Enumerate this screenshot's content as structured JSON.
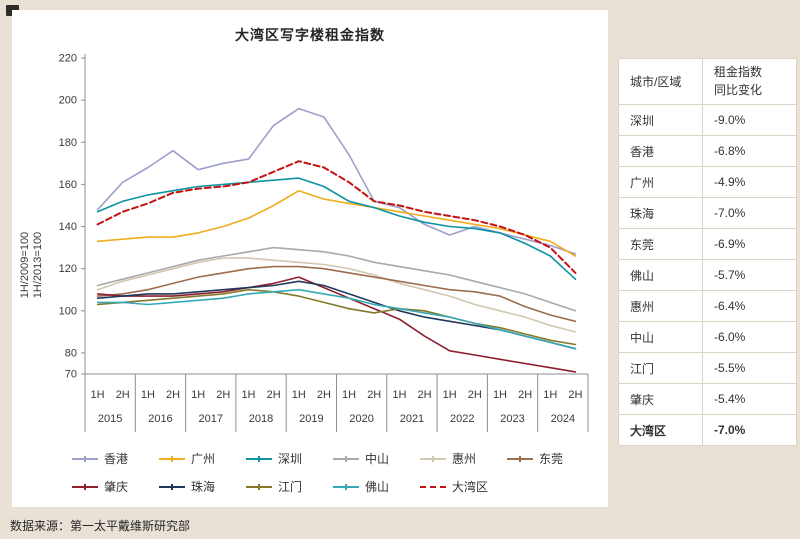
{
  "colors": {
    "page_background": "#e9e1d5",
    "panel_background": "#ffffff"
  },
  "chart_data": {
    "type": "line",
    "title": "大湾区写字楼租金指数",
    "ylabel_lines": [
      "1H/2009=100",
      "1H/2013=100"
    ],
    "ylim": [
      70,
      220
    ],
    "y_ticks": [
      70,
      80,
      100,
      120,
      140,
      160,
      180,
      200,
      220
    ],
    "half_labels": [
      "1H",
      "2H"
    ],
    "years": [
      "2015",
      "2016",
      "2017",
      "2018",
      "2019",
      "2020",
      "2021",
      "2022",
      "2023",
      "2024"
    ],
    "grid": false,
    "legend_position": "bottom",
    "series": [
      {
        "id": "hongkong",
        "name": "香港",
        "color": "#9ca0cb",
        "dashed": false,
        "values": [
          148,
          161,
          168,
          176,
          167,
          170,
          172,
          188,
          196,
          192,
          174,
          152,
          149,
          141,
          136,
          140,
          137,
          134,
          131,
          127
        ]
      },
      {
        "id": "guangzhou",
        "name": "广州",
        "color": "#f0ad1e",
        "dashed": false,
        "values": [
          133,
          134,
          135,
          135,
          137,
          140,
          144,
          150,
          157,
          153,
          151,
          149,
          147,
          145,
          143,
          141,
          139,
          136,
          133,
          126
        ]
      },
      {
        "id": "shenzhen",
        "name": "深圳",
        "color": "#0d93a3",
        "dashed": false,
        "values": [
          147,
          152,
          155,
          157,
          159,
          160,
          161,
          162,
          163,
          159,
          152,
          149,
          145,
          142,
          140,
          139,
          137,
          132,
          126,
          115
        ]
      },
      {
        "id": "zhongshan",
        "name": "中山",
        "color": "#a9a9a9",
        "dashed": false,
        "values": [
          112,
          115,
          118,
          121,
          124,
          126,
          128,
          130,
          129,
          128,
          126,
          123,
          121,
          119,
          117,
          114,
          111,
          108,
          104,
          100
        ]
      },
      {
        "id": "huizhou",
        "name": "惠州",
        "color": "#d2c7b0",
        "dashed": false,
        "values": [
          110,
          114,
          117,
          120,
          123,
          125,
          125,
          124,
          123,
          122,
          120,
          117,
          113,
          110,
          107,
          103,
          100,
          97,
          93,
          90
        ]
      },
      {
        "id": "dongguan",
        "name": "东莞",
        "color": "#9a6e4e",
        "dashed": false,
        "values": [
          107,
          108,
          110,
          113,
          116,
          118,
          120,
          121,
          121,
          120,
          118,
          116,
          114,
          112,
          110,
          109,
          107,
          102,
          98,
          95
        ]
      },
      {
        "id": "zhaoqing",
        "name": "肇庆",
        "color": "#8e1f2f",
        "dashed": false,
        "values": [
          108,
          107,
          107,
          107,
          108,
          109,
          111,
          113,
          116,
          111,
          106,
          101,
          96,
          88,
          81,
          79,
          77,
          75,
          73,
          71
        ]
      },
      {
        "id": "zhuhai",
        "name": "珠海",
        "color": "#22395c",
        "dashed": false,
        "values": [
          106,
          107,
          108,
          108,
          109,
          110,
          111,
          112,
          114,
          112,
          108,
          104,
          100,
          97,
          95,
          93,
          91,
          88,
          85,
          82
        ]
      },
      {
        "id": "jiangmen",
        "name": "江门",
        "color": "#84782a",
        "dashed": false,
        "values": [
          103,
          104,
          105,
          106,
          107,
          108,
          110,
          109,
          107,
          104,
          101,
          99,
          101,
          100,
          97,
          94,
          92,
          89,
          86,
          84
        ]
      },
      {
        "id": "foshan",
        "name": "佛山",
        "color": "#35aab6",
        "dashed": false,
        "values": [
          104,
          104,
          103,
          104,
          105,
          106,
          108,
          109,
          110,
          108,
          106,
          103,
          101,
          99,
          97,
          94,
          91,
          88,
          85,
          82
        ]
      },
      {
        "id": "gba",
        "name": "大湾区",
        "color": "#c41212",
        "dashed": true,
        "values": [
          141,
          147,
          151,
          156,
          158,
          159,
          161,
          166,
          171,
          168,
          161,
          152,
          150,
          147,
          145,
          143,
          140,
          136,
          130,
          118
        ]
      }
    ]
  },
  "table": {
    "header": {
      "col1": "城市/区域",
      "col2": "租金指数同比变化"
    },
    "rows": [
      {
        "city": "深圳",
        "change": "-9.0%",
        "bold": false
      },
      {
        "city": "香港",
        "change": "-6.8%",
        "bold": false
      },
      {
        "city": "广州",
        "change": "-4.9%",
        "bold": false
      },
      {
        "city": "珠海",
        "change": "-7.0%",
        "bold": false
      },
      {
        "city": "东莞",
        "change": "-6.9%",
        "bold": false
      },
      {
        "city": "佛山",
        "change": "-5.7%",
        "bold": false
      },
      {
        "city": "惠州",
        "change": "-6.4%",
        "bold": false
      },
      {
        "city": "中山",
        "change": "-6.0%",
        "bold": false
      },
      {
        "city": "江门",
        "change": "-5.5%",
        "bold": false
      },
      {
        "city": "肇庆",
        "change": "-5.4%",
        "bold": false
      },
      {
        "city": "大湾区",
        "change": "-7.0%",
        "bold": true
      }
    ]
  },
  "source": "数据来源：第一太平戴维斯研究部"
}
